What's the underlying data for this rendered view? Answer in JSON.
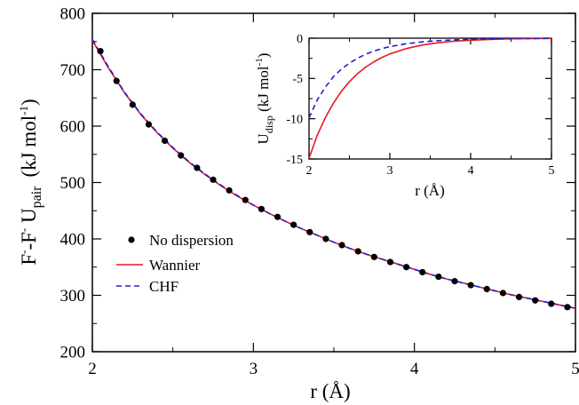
{
  "chart_data": [
    {
      "type": "line",
      "xlabel": "r (Å)",
      "ylabel": {
        "main": "F",
        "sup1": "-",
        "mid": "-F",
        "sup2": "-",
        "u": " U",
        "sub": "pair",
        "units": "(kJ mol",
        "units_sup": "-1",
        "units_end": ")"
      },
      "xlim": [
        2,
        5
      ],
      "ylim": [
        200,
        800
      ],
      "xticks": [
        "2",
        "3",
        "4",
        "5"
      ],
      "yticks": [
        "200",
        "300",
        "400",
        "500",
        "600",
        "700",
        "800"
      ],
      "legend": {
        "placement": "center-left"
      },
      "series": [
        {
          "name": "No dispersion",
          "style": "markers",
          "color": "#000000",
          "x": [
            2.05,
            2.15,
            2.25,
            2.35,
            2.45,
            2.55,
            2.65,
            2.75,
            2.85,
            2.95,
            3.05,
            3.15,
            3.25,
            3.35,
            3.45,
            3.55,
            3.65,
            3.75,
            3.85,
            3.95,
            4.05,
            4.15,
            4.25,
            4.35,
            4.45,
            4.55,
            4.65,
            4.75,
            4.85,
            4.95
          ],
          "y": [
            733,
            680,
            638,
            603,
            574,
            548,
            526,
            505,
            486,
            469,
            453,
            439,
            425,
            412,
            400,
            389,
            378,
            368,
            359,
            350,
            341,
            333,
            325,
            318,
            311,
            304,
            297,
            291,
            285,
            279
          ]
        },
        {
          "name": "Wannier",
          "style": "solid",
          "color": "#e8191c",
          "x": [
            2.0,
            2.1,
            2.2,
            2.3,
            2.4,
            2.5,
            2.6,
            2.7,
            2.8,
            2.9,
            3.0,
            3.1,
            3.2,
            3.3,
            3.4,
            3.5,
            3.6,
            3.7,
            3.8,
            3.9,
            4.0,
            4.1,
            4.2,
            4.3,
            4.4,
            4.5,
            4.6,
            4.7,
            4.8,
            4.9,
            5.0
          ],
          "y": [
            752,
            703,
            659,
            621,
            589,
            561,
            536,
            514,
            494,
            476,
            460,
            445,
            431,
            418,
            406,
            394,
            383,
            373,
            364,
            355,
            346,
            337,
            329,
            322,
            315,
            308,
            301,
            295,
            289,
            283,
            277
          ]
        },
        {
          "name": "CHF",
          "style": "dashed",
          "color": "#1f1fd6",
          "x": [
            2.0,
            2.1,
            2.2,
            2.3,
            2.4,
            2.5,
            2.6,
            2.7,
            2.8,
            2.9,
            3.0,
            3.1,
            3.2,
            3.3,
            3.4,
            3.5,
            3.6,
            3.7,
            3.8,
            3.9,
            4.0,
            4.1,
            4.2,
            4.3,
            4.4,
            4.5,
            4.6,
            4.7,
            4.8,
            4.9,
            5.0
          ],
          "y": [
            754,
            705,
            660,
            622,
            590,
            562,
            537,
            515,
            495,
            477,
            460,
            445,
            431,
            418,
            406,
            394,
            383,
            373,
            364,
            355,
            346,
            337,
            329,
            322,
            315,
            308,
            301,
            295,
            289,
            283,
            277
          ]
        }
      ]
    },
    {
      "type": "line",
      "xlabel": "r (Å)",
      "ylabel": {
        "u": "U",
        "sub": "disp",
        "units": " (kJ mol",
        "units_sup": "-1",
        "units_end": ")"
      },
      "xlim": [
        2,
        5
      ],
      "ylim": [
        -15,
        0
      ],
      "xticks": [
        "2",
        "3",
        "4",
        "5"
      ],
      "yticks": [
        "-15",
        "-10",
        "-5",
        "0"
      ],
      "series": [
        {
          "name": "Wannier",
          "style": "solid",
          "color": "#e8191c",
          "x": [
            2.0,
            2.1,
            2.2,
            2.3,
            2.4,
            2.5,
            2.6,
            2.7,
            2.8,
            2.9,
            3.0,
            3.2,
            3.4,
            3.6,
            3.8,
            4.0,
            4.2,
            4.4,
            4.6,
            4.8,
            5.0
          ],
          "y": [
            -14.9,
            -12.1,
            -9.9,
            -8.1,
            -6.6,
            -5.4,
            -4.4,
            -3.6,
            -2.95,
            -2.4,
            -1.95,
            -1.3,
            -0.85,
            -0.56,
            -0.37,
            -0.25,
            -0.17,
            -0.11,
            -0.07,
            -0.05,
            -0.03
          ]
        },
        {
          "name": "CHF",
          "style": "dashed",
          "color": "#1f1fd6",
          "x": [
            2.0,
            2.1,
            2.2,
            2.3,
            2.4,
            2.5,
            2.6,
            2.7,
            2.8,
            2.9,
            3.0,
            3.2,
            3.4,
            3.6,
            3.8,
            4.0,
            4.2,
            4.4,
            4.6,
            4.8,
            5.0
          ],
          "y": [
            -9.9,
            -7.7,
            -6.1,
            -4.8,
            -3.85,
            -3.1,
            -2.5,
            -2.0,
            -1.6,
            -1.3,
            -1.05,
            -0.7,
            -0.46,
            -0.31,
            -0.21,
            -0.14,
            -0.1,
            -0.07,
            -0.05,
            -0.03,
            -0.02
          ]
        }
      ]
    }
  ]
}
